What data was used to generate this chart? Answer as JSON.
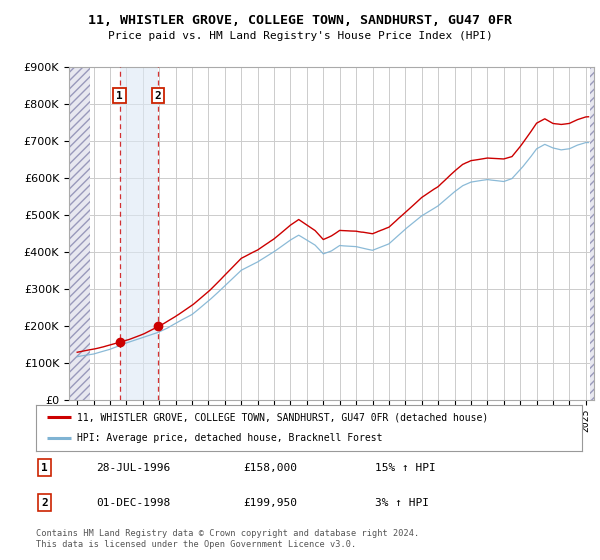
{
  "title": "11, WHISTLER GROVE, COLLEGE TOWN, SANDHURST, GU47 0FR",
  "subtitle": "Price paid vs. HM Land Registry's House Price Index (HPI)",
  "legend_line1": "11, WHISTLER GROVE, COLLEGE TOWN, SANDHURST, GU47 0FR (detached house)",
  "legend_line2": "HPI: Average price, detached house, Bracknell Forest",
  "footnote": "Contains HM Land Registry data © Crown copyright and database right 2024.\nThis data is licensed under the Open Government Licence v3.0.",
  "sale1_label": "1",
  "sale1_date": "28-JUL-1996",
  "sale1_price": "£158,000",
  "sale1_hpi": "15% ↑ HPI",
  "sale1_year": 1996.58,
  "sale1_value": 158000,
  "sale2_label": "2",
  "sale2_date": "01-DEC-1998",
  "sale2_price": "£199,950",
  "sale2_hpi": "3% ↑ HPI",
  "sale2_year": 1998.92,
  "sale2_value": 199950,
  "red_line_color": "#cc0000",
  "blue_line_color": "#7fb3d3",
  "hatch_color": "#b0b0c8",
  "shade_color": "#dde8f5",
  "background_color": "#ffffff",
  "grid_color": "#cccccc",
  "ylim": [
    0,
    900000
  ],
  "xlim": [
    1993.5,
    2025.5
  ],
  "hatch_end": 1994.75,
  "hatch_right_start": 2025.25,
  "shade_start": 1996.58,
  "shade_end": 1998.92
}
